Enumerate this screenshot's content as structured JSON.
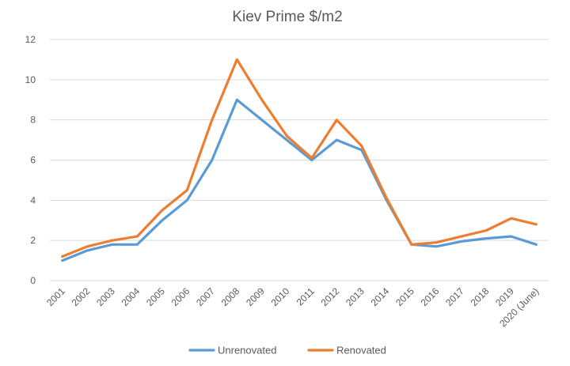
{
  "chart_data": {
    "type": "line",
    "title": "Kiev Prime $/m2",
    "xlabel": "",
    "ylabel": "",
    "categories": [
      "2001",
      "2002",
      "2003",
      "2004",
      "2005",
      "2006",
      "2007",
      "2008",
      "2009",
      "2010",
      "2011",
      "2012",
      "2013",
      "2014",
      "2015",
      "2016",
      "2017",
      "2018",
      "2019",
      "2020 (June)"
    ],
    "ylim": [
      0,
      12
    ],
    "yticks": [
      "0",
      "2",
      "4",
      "6",
      "8",
      "10",
      "12"
    ],
    "grid": true,
    "legend_position": "bottom",
    "series": [
      {
        "name": "Unrenovated",
        "color": "#5B9BD5",
        "values": [
          1.0,
          1.5,
          1.8,
          1.8,
          3.0,
          4.0,
          6.0,
          9.0,
          8.0,
          7.0,
          6.0,
          7.0,
          6.5,
          4.0,
          1.8,
          1.7,
          1.95,
          2.1,
          2.2,
          1.8
        ]
      },
      {
        "name": "Renovated",
        "color": "#ED7D31",
        "values": [
          1.2,
          1.7,
          2.0,
          2.2,
          3.5,
          4.5,
          8.0,
          11.0,
          9.0,
          7.2,
          6.1,
          8.0,
          6.7,
          4.1,
          1.8,
          1.9,
          2.2,
          2.5,
          3.1,
          2.8
        ]
      }
    ]
  }
}
